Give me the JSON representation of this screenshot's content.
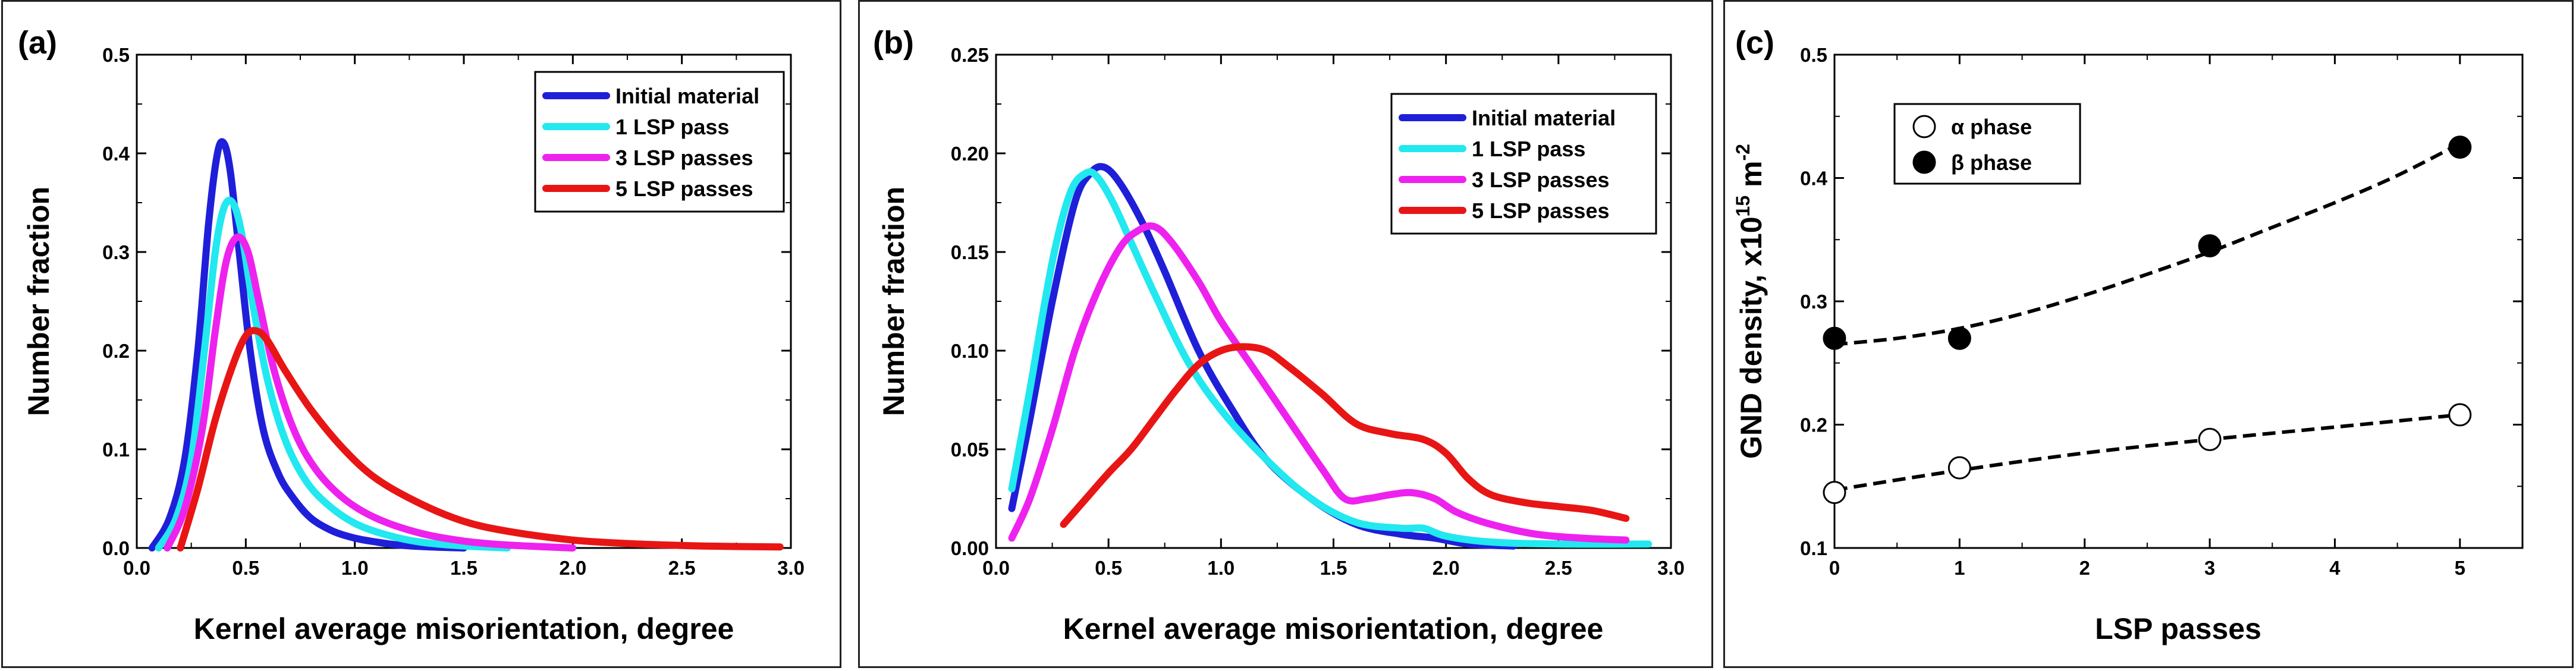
{
  "chart_data": [
    {
      "type": "line",
      "panel_label": "(a)",
      "xlabel": "Kernel average misorientation, degree",
      "ylabel": "Number fraction",
      "xlim": [
        0.0,
        3.0
      ],
      "ylim": [
        0.0,
        0.5
      ],
      "xticks": [
        "0.0",
        "0.5",
        "1.0",
        "1.5",
        "2.0",
        "2.5",
        "3.0"
      ],
      "yticks": [
        "0.0",
        "0.1",
        "0.2",
        "0.3",
        "0.4",
        "0.5"
      ],
      "legend_position": "top-right",
      "series": [
        {
          "name": "Initial material",
          "color": "#1f1fd9",
          "x": [
            0.07,
            0.15,
            0.22,
            0.28,
            0.33,
            0.37,
            0.4,
            0.43,
            0.47,
            0.52,
            0.58,
            0.65,
            0.72,
            0.8,
            0.9,
            1.0,
            1.1,
            1.2,
            1.35,
            1.5
          ],
          "y": [
            0.0,
            0.03,
            0.09,
            0.2,
            0.33,
            0.4,
            0.41,
            0.38,
            0.3,
            0.2,
            0.12,
            0.075,
            0.05,
            0.03,
            0.017,
            0.01,
            0.006,
            0.003,
            0.001,
            0.0
          ]
        },
        {
          "name": "1 LSP pass",
          "color": "#22e8ef",
          "x": [
            0.1,
            0.18,
            0.25,
            0.31,
            0.36,
            0.4,
            0.44,
            0.48,
            0.53,
            0.6,
            0.68,
            0.77,
            0.87,
            1.0,
            1.15,
            1.3,
            1.5,
            1.7
          ],
          "y": [
            0.0,
            0.03,
            0.09,
            0.2,
            0.3,
            0.345,
            0.35,
            0.32,
            0.25,
            0.17,
            0.11,
            0.07,
            0.045,
            0.025,
            0.013,
            0.006,
            0.002,
            0.0
          ]
        },
        {
          "name": "3 LSP passes",
          "color": "#ee22ee",
          "x": [
            0.14,
            0.22,
            0.3,
            0.36,
            0.41,
            0.46,
            0.51,
            0.56,
            0.63,
            0.72,
            0.82,
            0.95,
            1.1,
            1.3,
            1.5,
            1.7,
            2.0
          ],
          "y": [
            0.0,
            0.04,
            0.12,
            0.22,
            0.29,
            0.315,
            0.3,
            0.25,
            0.18,
            0.12,
            0.08,
            0.05,
            0.03,
            0.015,
            0.007,
            0.003,
            0.0
          ]
        },
        {
          "name": "5 LSP passes",
          "color": "#e81515",
          "x": [
            0.2,
            0.28,
            0.36,
            0.44,
            0.5,
            0.55,
            0.6,
            0.68,
            0.8,
            0.95,
            1.1,
            1.3,
            1.5,
            1.7,
            2.0,
            2.3,
            2.6,
            2.95
          ],
          "y": [
            0.0,
            0.06,
            0.13,
            0.185,
            0.215,
            0.22,
            0.21,
            0.18,
            0.14,
            0.1,
            0.07,
            0.045,
            0.027,
            0.017,
            0.008,
            0.004,
            0.002,
            0.001
          ]
        }
      ]
    },
    {
      "type": "line",
      "panel_label": "(b)",
      "xlabel": "Kernel average misorientation, degree",
      "ylabel": "Number fraction",
      "xlim": [
        0.0,
        3.0
      ],
      "ylim": [
        0.0,
        0.25
      ],
      "xticks": [
        "0.0",
        "0.5",
        "1.0",
        "1.5",
        "2.0",
        "2.5",
        "3.0"
      ],
      "yticks": [
        "0.00",
        "0.05",
        "0.10",
        "0.15",
        "0.20",
        "0.25"
      ],
      "legend_position": "top-right",
      "series": [
        {
          "name": "Initial material",
          "color": "#1f1fd9",
          "x": [
            0.07,
            0.15,
            0.25,
            0.35,
            0.42,
            0.48,
            0.55,
            0.65,
            0.75,
            0.9,
            1.05,
            1.2,
            1.4,
            1.6,
            1.8,
            1.95,
            2.1,
            2.3
          ],
          "y": [
            0.02,
            0.065,
            0.125,
            0.175,
            0.19,
            0.193,
            0.185,
            0.165,
            0.14,
            0.1,
            0.07,
            0.045,
            0.025,
            0.012,
            0.007,
            0.005,
            0.002,
            0.001
          ]
        },
        {
          "name": "1 LSP pass",
          "color": "#22e8ef",
          "x": [
            0.07,
            0.15,
            0.25,
            0.33,
            0.4,
            0.45,
            0.52,
            0.6,
            0.7,
            0.85,
            1.0,
            1.2,
            1.4,
            1.6,
            1.8,
            1.9,
            2.0,
            2.2,
            2.5,
            2.9
          ],
          "y": [
            0.03,
            0.08,
            0.145,
            0.18,
            0.19,
            0.188,
            0.175,
            0.155,
            0.13,
            0.095,
            0.07,
            0.045,
            0.025,
            0.013,
            0.01,
            0.01,
            0.006,
            0.003,
            0.002,
            0.002
          ]
        },
        {
          "name": "3 LSP passes",
          "color": "#ee22ee",
          "x": [
            0.07,
            0.15,
            0.25,
            0.35,
            0.45,
            0.55,
            0.62,
            0.7,
            0.78,
            0.9,
            1.0,
            1.15,
            1.3,
            1.45,
            1.55,
            1.65,
            1.75,
            1.85,
            1.95,
            2.05,
            2.2,
            2.4,
            2.6,
            2.8
          ],
          "y": [
            0.005,
            0.025,
            0.06,
            0.1,
            0.13,
            0.152,
            0.16,
            0.163,
            0.155,
            0.135,
            0.115,
            0.09,
            0.065,
            0.04,
            0.025,
            0.025,
            0.027,
            0.028,
            0.025,
            0.018,
            0.012,
            0.007,
            0.005,
            0.004
          ]
        },
        {
          "name": "5 LSP passes",
          "color": "#e81515",
          "x": [
            0.3,
            0.4,
            0.5,
            0.6,
            0.7,
            0.8,
            0.9,
            1.0,
            1.1,
            1.2,
            1.3,
            1.45,
            1.6,
            1.75,
            1.9,
            2.0,
            2.1,
            2.2,
            2.35,
            2.5,
            2.65,
            2.8
          ],
          "y": [
            0.012,
            0.025,
            0.038,
            0.05,
            0.065,
            0.08,
            0.093,
            0.1,
            0.102,
            0.1,
            0.092,
            0.078,
            0.063,
            0.058,
            0.055,
            0.048,
            0.035,
            0.027,
            0.023,
            0.021,
            0.019,
            0.015
          ]
        }
      ]
    },
    {
      "type": "scatter",
      "panel_label": "(c)",
      "xlabel": "LSP passes",
      "ylabel_main": "GND density, x10",
      "ylabel_sup1": "15",
      "ylabel_mid": " m",
      "ylabel_sup2": "-2",
      "xlim": [
        0,
        5.5
      ],
      "ylim": [
        0.1,
        0.5
      ],
      "xticks": [
        "0",
        "1",
        "2",
        "3",
        "4",
        "5"
      ],
      "yticks": [
        "0.1",
        "0.2",
        "0.3",
        "0.4",
        "0.5"
      ],
      "legend_position": "top-left",
      "series": [
        {
          "name": "α phase",
          "marker": "open-circle",
          "x": [
            0,
            1,
            3,
            5
          ],
          "y": [
            0.145,
            0.165,
            0.188,
            0.208
          ],
          "trend_x": [
            0,
            1,
            2,
            3,
            4,
            5
          ],
          "trend_y": [
            0.147,
            0.163,
            0.177,
            0.188,
            0.198,
            0.208
          ]
        },
        {
          "name": "β phase",
          "marker": "filled-circle",
          "x": [
            0,
            1,
            3,
            5
          ],
          "y": [
            0.27,
            0.27,
            0.345,
            0.425
          ],
          "trend_x": [
            0,
            0.5,
            1,
            1.5,
            2,
            2.5,
            3,
            3.5,
            4,
            4.5,
            5
          ],
          "trend_y": [
            0.265,
            0.27,
            0.278,
            0.29,
            0.305,
            0.322,
            0.34,
            0.36,
            0.38,
            0.402,
            0.428
          ]
        }
      ]
    }
  ]
}
